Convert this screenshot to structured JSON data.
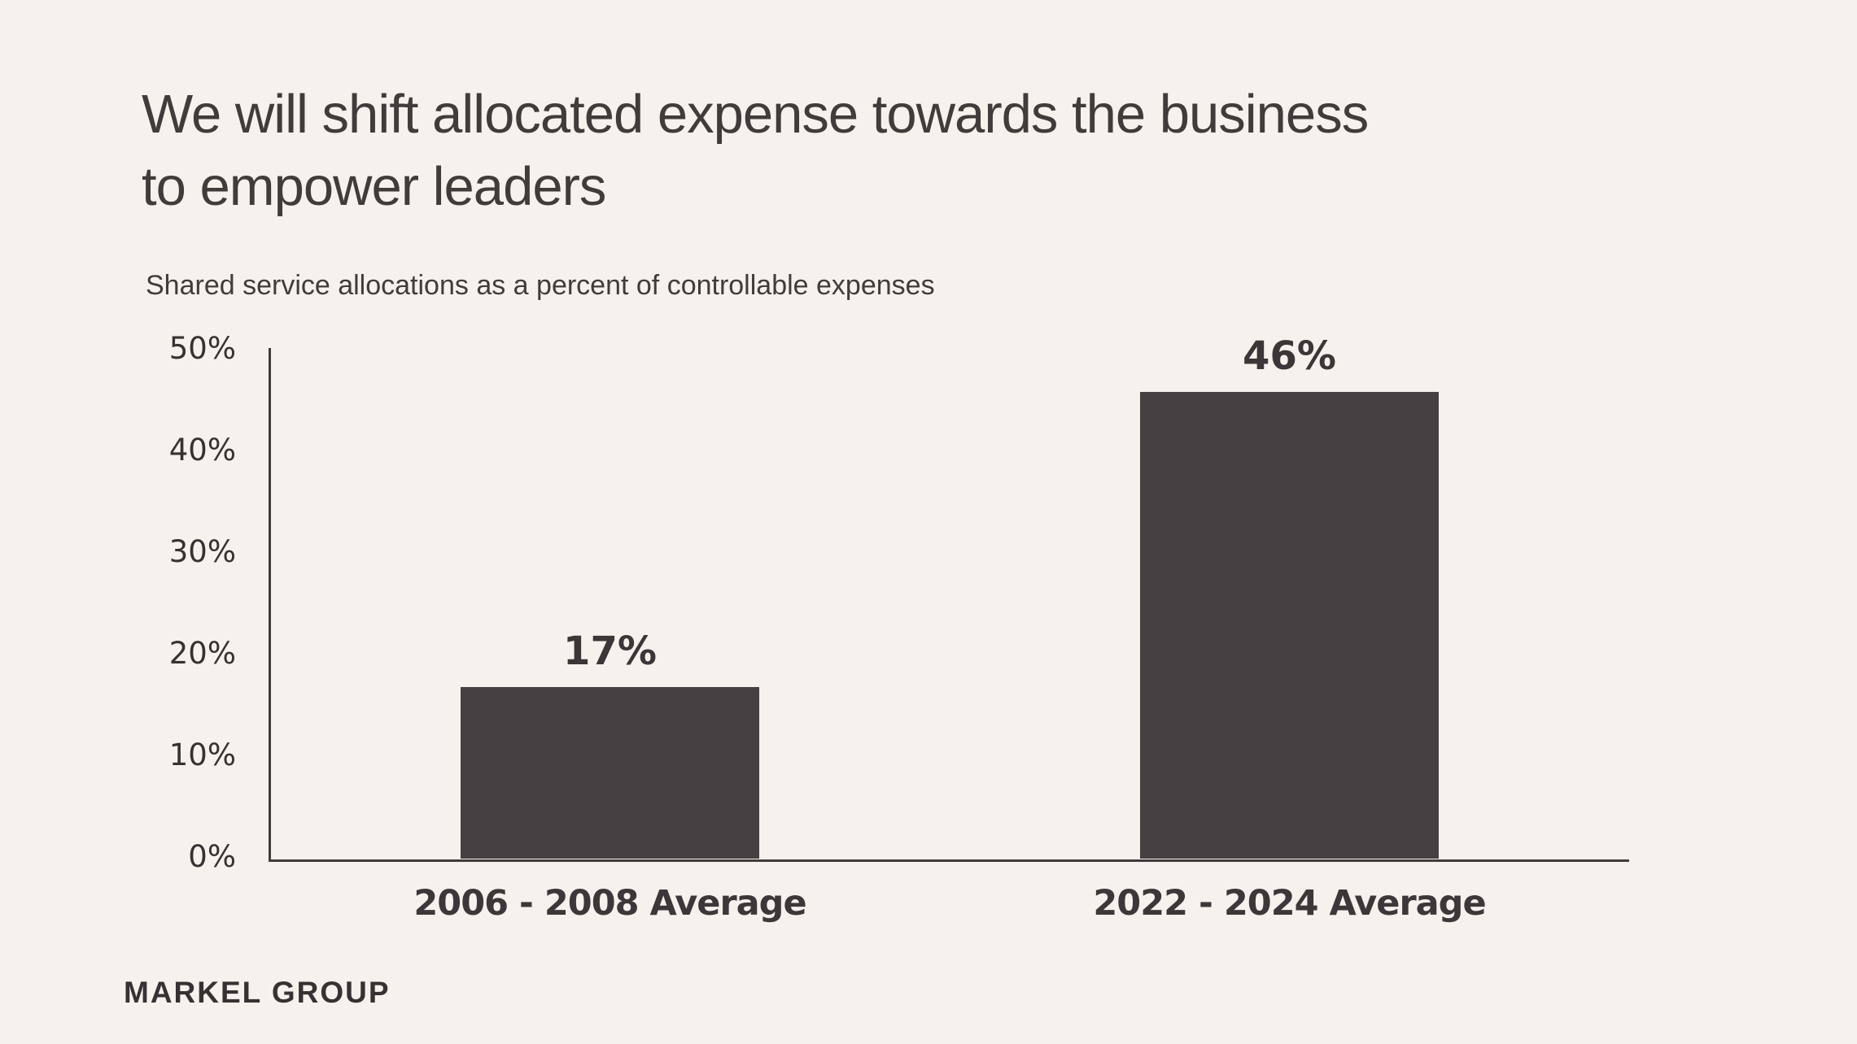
{
  "title": "We will shift allocated expense towards the business\nto empower leaders",
  "subtitle": "Shared service allocations as a percent of controllable expenses",
  "footer": {
    "logo_text": "MARKEL GROUP"
  },
  "colors": {
    "background": "#f5f1ec",
    "bar": "#454142",
    "axis": "#403c3c",
    "text": "#403c3b"
  },
  "chart_data": {
    "type": "bar",
    "categories": [
      "2006 - 2008 Average",
      "2022 - 2024 Average"
    ],
    "values": [
      17,
      46
    ],
    "data_labels": [
      "17%",
      "46%"
    ],
    "title": "",
    "xlabel": "",
    "ylabel": "",
    "ylim": [
      0,
      50
    ],
    "yticks": [
      0,
      10,
      20,
      30,
      40,
      50
    ],
    "ytick_labels": [
      "0%",
      "10%",
      "20%",
      "30%",
      "40%",
      "50%"
    ],
    "grid": false,
    "legend": false
  }
}
